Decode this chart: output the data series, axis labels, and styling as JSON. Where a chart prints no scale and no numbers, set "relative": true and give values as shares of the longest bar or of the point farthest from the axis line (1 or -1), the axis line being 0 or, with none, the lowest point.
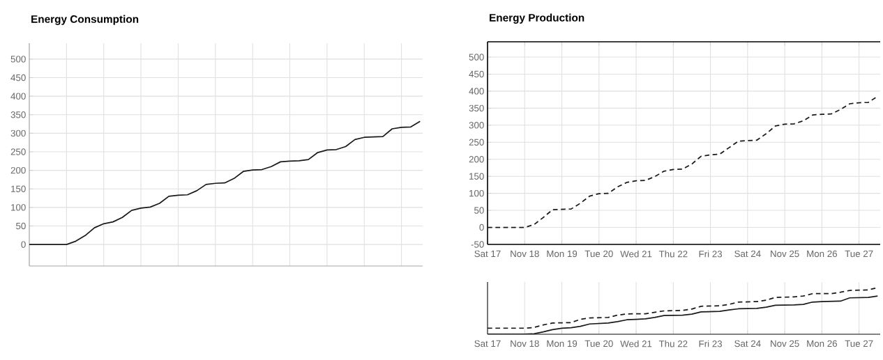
{
  "chart_data": [
    {
      "type": "line",
      "title": "Energy Consumption",
      "color": "#1a1a1a",
      "line_style": "solid",
      "grid": true,
      "tick_labels": "y",
      "categories": [
        null,
        null,
        null,
        null,
        null,
        null,
        null,
        null,
        null,
        null,
        null,
        null,
        null,
        null,
        null,
        null,
        null,
        null,
        null,
        null,
        null,
        null,
        null,
        null,
        null,
        null,
        null,
        null,
        null,
        null,
        null,
        null,
        null,
        null,
        null,
        null,
        null,
        null,
        null,
        null,
        null,
        null,
        null
      ],
      "values": [
        0,
        0,
        0,
        0,
        0,
        9,
        24,
        45,
        56,
        61,
        73,
        92,
        98,
        101,
        111,
        130,
        133,
        134,
        145,
        162,
        165,
        166,
        178,
        197,
        201,
        202,
        210,
        223,
        225,
        226,
        229,
        248,
        255,
        256,
        264,
        283,
        289,
        290,
        291,
        312,
        316,
        317,
        332
      ],
      "ylim": [
        -58,
        543
      ],
      "yticks": [
        0,
        50,
        100,
        150,
        200,
        250,
        300,
        350,
        400,
        450,
        500
      ]
    },
    {
      "type": "line",
      "title": "Energy Production",
      "color": "#1a1a1a",
      "line_style": "dashed",
      "grid": true,
      "categories": [
        "Sat 17",
        null,
        null,
        null,
        "Nov 18",
        null,
        null,
        null,
        "Mon 19",
        null,
        null,
        null,
        "Tue 20",
        null,
        null,
        null,
        "Wed 21",
        null,
        null,
        null,
        "Thu 22",
        null,
        null,
        null,
        "Fri 23",
        null,
        null,
        null,
        "Sat 24",
        null,
        null,
        null,
        "Nov 25",
        null,
        null,
        null,
        "Mon 26",
        null,
        null,
        null,
        "Tue 27",
        null,
        null
      ],
      "values": [
        0,
        0,
        0,
        0,
        0,
        8,
        29,
        52,
        53,
        54,
        71,
        92,
        99,
        100,
        119,
        132,
        137,
        138,
        149,
        165,
        170,
        171,
        186,
        209,
        213,
        215,
        234,
        253,
        255,
        256,
        275,
        298,
        303,
        304,
        313,
        330,
        332,
        333,
        346,
        363,
        366,
        367,
        385
      ],
      "ylim": [
        -50,
        545
      ],
      "yticks": [
        -50,
        0,
        50,
        100,
        150,
        200,
        250,
        300,
        350,
        400,
        450,
        500
      ]
    },
    {
      "type": "line",
      "relative": true,
      "grid": "x",
      "tick_labels": "x",
      "categories": [
        "Sat 17",
        null,
        null,
        null,
        "Nov 18",
        null,
        null,
        null,
        "Mon 19",
        null,
        null,
        null,
        "Tue 20",
        null,
        null,
        null,
        "Wed 21",
        null,
        null,
        null,
        "Thu 22",
        null,
        null,
        null,
        "Fri 23",
        null,
        null,
        null,
        "Sat 24",
        null,
        null,
        null,
        "Nov 25",
        null,
        null,
        null,
        "Mon 26",
        null,
        null,
        null,
        "Tue 27",
        null,
        null
      ],
      "series": [
        {
          "color": "#1a1a1a",
          "line_style": "dashed",
          "values": [
            0.13,
            0.13,
            0.13,
            0.13,
            0.13,
            0.145,
            0.2,
            0.24,
            0.245,
            0.25,
            0.32,
            0.35,
            0.355,
            0.36,
            0.41,
            0.435,
            0.44,
            0.44,
            0.47,
            0.5,
            0.505,
            0.51,
            0.54,
            0.6,
            0.605,
            0.61,
            0.64,
            0.69,
            0.695,
            0.7,
            0.73,
            0.79,
            0.795,
            0.8,
            0.82,
            0.87,
            0.87,
            0.87,
            0.9,
            0.94,
            0.945,
            0.95,
            1.0
          ]
        },
        {
          "color": "#1a1a1a",
          "line_style": "solid",
          "values": [
            0,
            0,
            0,
            0,
            0,
            0.01,
            0.05,
            0.1,
            0.13,
            0.14,
            0.17,
            0.22,
            0.23,
            0.24,
            0.27,
            0.31,
            0.32,
            0.33,
            0.36,
            0.4,
            0.405,
            0.41,
            0.43,
            0.48,
            0.485,
            0.49,
            0.52,
            0.545,
            0.55,
            0.555,
            0.58,
            0.62,
            0.625,
            0.63,
            0.64,
            0.69,
            0.7,
            0.705,
            0.71,
            0.78,
            0.785,
            0.79,
            0.82
          ]
        }
      ]
    }
  ]
}
